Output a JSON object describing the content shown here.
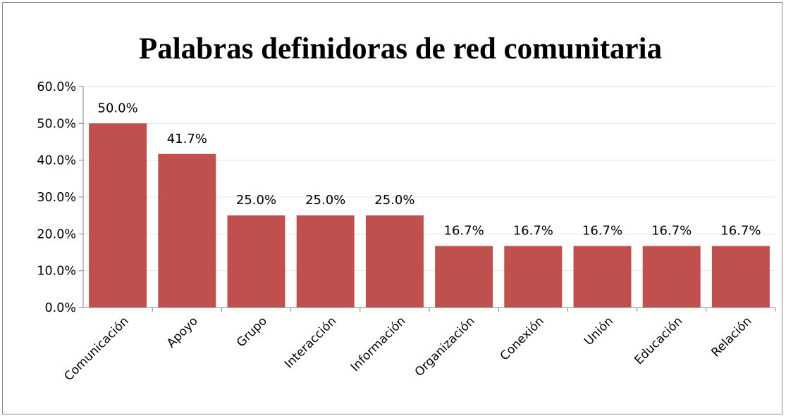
{
  "chart_data": {
    "type": "bar",
    "title": "Palabras definidoras de red comunitaria",
    "xlabel": "",
    "ylabel": "",
    "categories": [
      "Comunicación",
      "Apoyo",
      "Grupo",
      "Interacción",
      "Información",
      "Organización",
      "Conexión",
      "Unión",
      "Educación",
      "Relación"
    ],
    "values": [
      50.0,
      41.7,
      25.0,
      25.0,
      25.0,
      16.7,
      16.7,
      16.7,
      16.7,
      16.7
    ],
    "data_labels": [
      "50.0%",
      "41.7%",
      "25.0%",
      "25.0%",
      "25.0%",
      "16.7%",
      "16.7%",
      "16.7%",
      "16.7%",
      "16.7%"
    ],
    "ylim": [
      0,
      60
    ],
    "yticks": [
      0,
      10,
      20,
      30,
      40,
      50,
      60
    ],
    "ytick_labels": [
      "0.0%",
      "10.0%",
      "20.0%",
      "30.0%",
      "40.0%",
      "50.0%",
      "60.0%"
    ],
    "grid": true,
    "legend": "none",
    "bar_color": "#c0504d",
    "grid_color": "#e6e6e6",
    "axis_color": "#868686"
  }
}
